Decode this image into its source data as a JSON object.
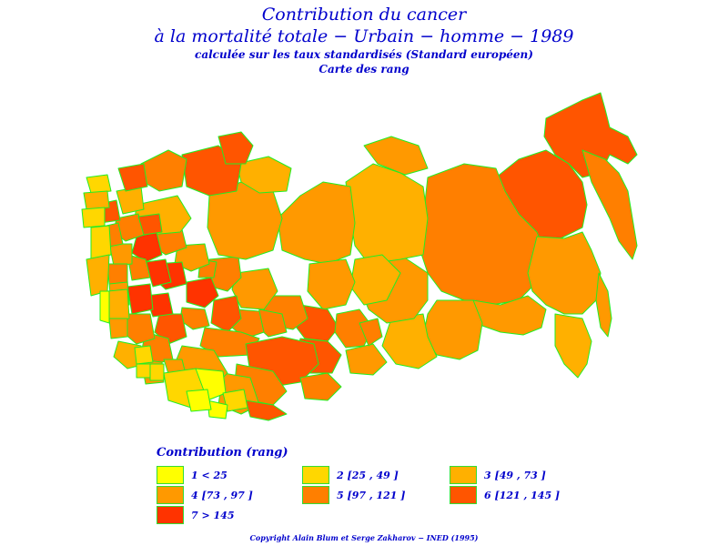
{
  "title": {
    "line1": "Contribution du cancer",
    "line2": "à la mortalité totale − Urbain − homme − 1989",
    "line3": "calculée sur les taux standardisés (Standard européen)",
    "line4": "Carte des rang"
  },
  "legend": {
    "title": "Contribution (rang)",
    "items": [
      {
        "label": "1 < 25",
        "color": "#ffff00"
      },
      {
        "label": "2 [25 , 49 ]",
        "color": "#ffd700"
      },
      {
        "label": "3 [49 , 73 ]",
        "color": "#ffb000"
      },
      {
        "label": "4 [73 , 97 ]",
        "color": "#ff9900"
      },
      {
        "label": "5 [97 , 121 ]",
        "color": "#ff7f00"
      },
      {
        "label": "6 [121 , 145 ]",
        "color": "#ff5500"
      },
      {
        "label": "7 > 145",
        "color": "#ff3300"
      }
    ]
  },
  "map": {
    "border_color": "#22ee22"
  },
  "footer": "Copyright Alain Blum et Serge Zakharov − INED (1995)"
}
